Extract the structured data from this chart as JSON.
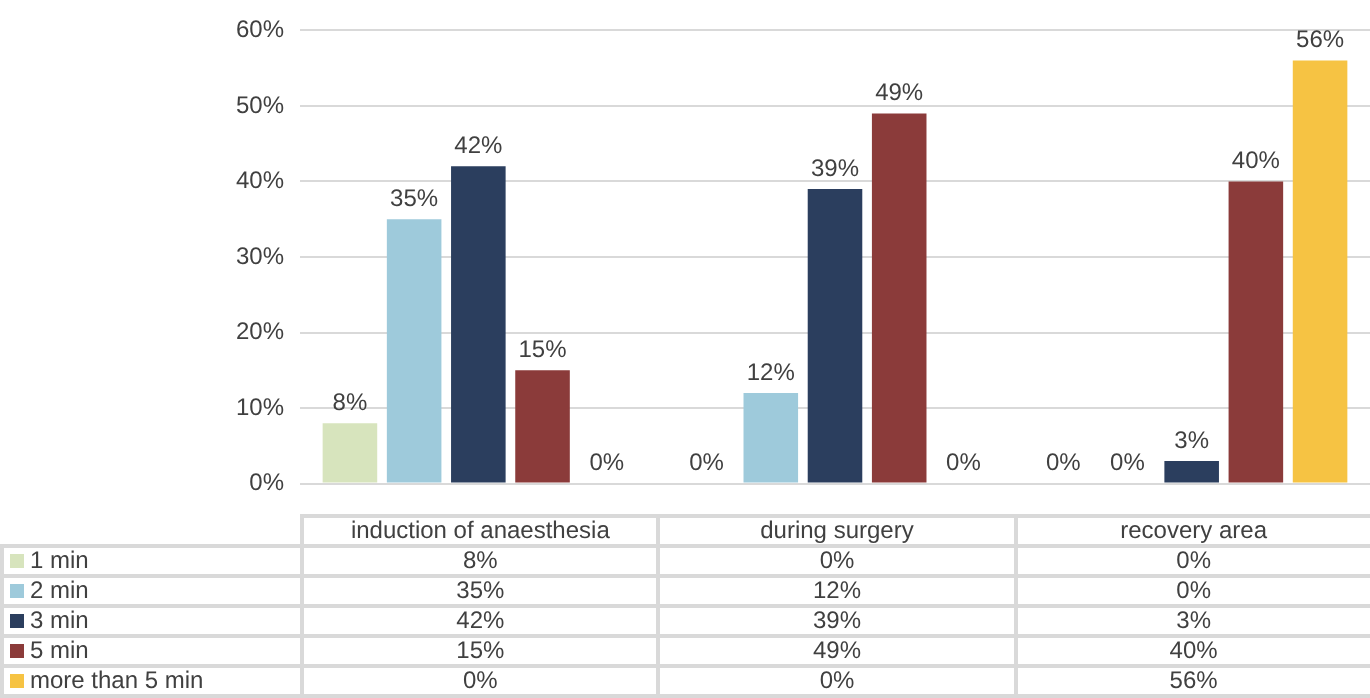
{
  "chart_data": {
    "type": "bar",
    "categories": [
      "induction of anaesthesia",
      "during surgery",
      "recovery area"
    ],
    "series": [
      {
        "name": "1 min",
        "color": "#d7e4bd",
        "values": [
          8,
          0,
          0
        ],
        "value_labels": [
          "8%",
          "0%",
          "0%"
        ]
      },
      {
        "name": "2 min",
        "color": "#9ecadb",
        "values": [
          35,
          12,
          0
        ],
        "value_labels": [
          "35%",
          "12%",
          "0%"
        ]
      },
      {
        "name": "3 min",
        "color": "#2b3e5e",
        "values": [
          42,
          39,
          3
        ],
        "value_labels": [
          "42%",
          "39%",
          "3%"
        ]
      },
      {
        "name": "5 min",
        "color": "#8b3b3a",
        "values": [
          15,
          49,
          40
        ],
        "value_labels": [
          "15%",
          "49%",
          "40%"
        ]
      },
      {
        "name": "more than 5 min",
        "color": "#f6c343",
        "values": [
          0,
          0,
          56
        ],
        "value_labels": [
          "0%",
          "0%",
          "56%"
        ]
      }
    ],
    "ylim": [
      0,
      60
    ],
    "yticks": [
      {
        "value": 0,
        "label": "0%"
      },
      {
        "value": 10,
        "label": "10%"
      },
      {
        "value": 20,
        "label": "20%"
      },
      {
        "value": 30,
        "label": "30%"
      },
      {
        "value": 40,
        "label": "40%"
      },
      {
        "value": 50,
        "label": "50%"
      },
      {
        "value": 60,
        "label": "60%"
      }
    ],
    "grid": "y",
    "legend": "bottom"
  }
}
